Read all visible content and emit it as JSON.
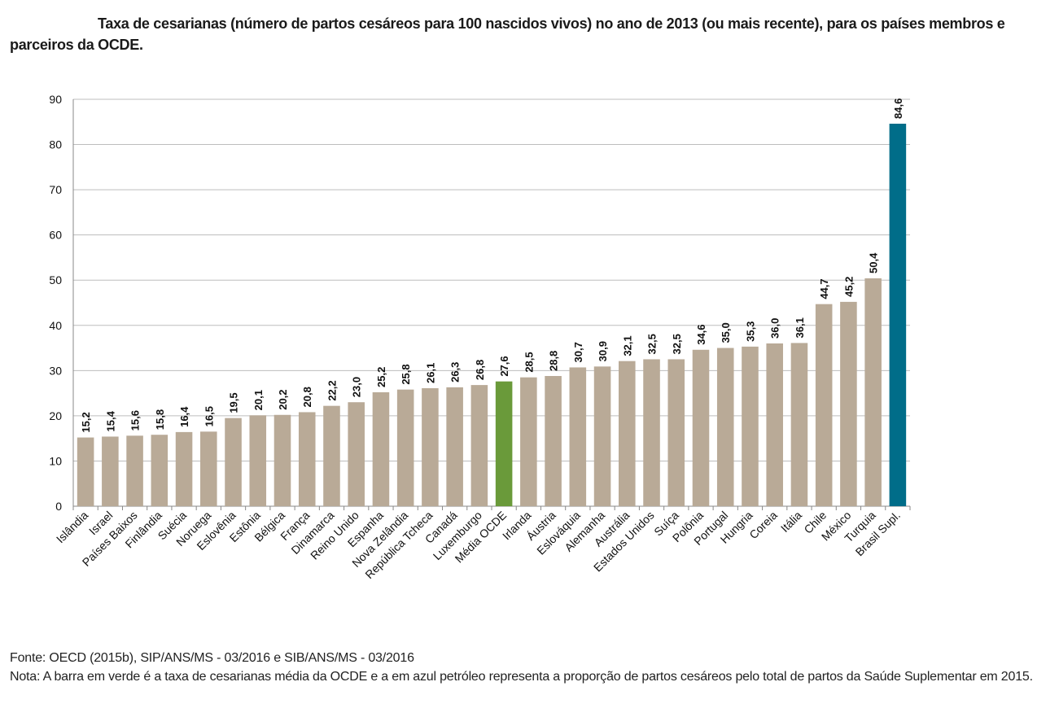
{
  "chart_data": {
    "type": "bar",
    "title": "Taxa de cesarianas (número de partos cesáreos para 100 nascidos vivos) no ano de 2013 (ou  mais recente), para os países membros e parceiros da OCDE.",
    "categories": [
      "Islândia",
      "Israel",
      "Países Baixos",
      "Finlândia",
      "Suécia",
      "Noruega",
      "Eslovênia",
      "Estônia",
      "Bélgica",
      "França",
      "Dinamarca",
      "Reino Unido",
      "Espanha",
      "Nova Zelândia",
      "República Tcheca",
      "Canadá",
      "Luxemburgo",
      "Média OCDE",
      "Irlanda",
      "Áustria",
      "Eslováquia",
      "Alemanha",
      "Austrália",
      "Estados Unidos",
      "Suíça",
      "Polônia",
      "Portugal",
      "Hungria",
      "Coreia",
      "Itália",
      "Chile",
      "México",
      "Turquia",
      "Brasil Supl."
    ],
    "values": [
      15.2,
      15.4,
      15.6,
      15.8,
      16.4,
      16.5,
      19.5,
      20.1,
      20.2,
      20.8,
      22.2,
      23.0,
      25.2,
      25.8,
      26.1,
      26.3,
      26.8,
      27.6,
      28.5,
      28.8,
      30.7,
      30.9,
      32.1,
      32.5,
      32.5,
      34.6,
      35.0,
      35.3,
      36.0,
      36.1,
      44.7,
      45.2,
      50.4,
      84.6
    ],
    "value_labels": [
      "15,2",
      "15,4",
      "15,6",
      "15,8",
      "16,4",
      "16,5",
      "19,5",
      "20,1",
      "20,2",
      "20,8",
      "22,2",
      "23,0",
      "25,2",
      "25,8",
      "26,1",
      "26,3",
      "26,8",
      "27,6",
      "28,5",
      "28,8",
      "30,7",
      "30,9",
      "32,1",
      "32,5",
      "32,5",
      "34,6",
      "35,0",
      "35,3",
      "36,0",
      "36,1",
      "44,7",
      "45,2",
      "50,4",
      "84,6"
    ],
    "colors": [
      "#b9aa97",
      "#b9aa97",
      "#b9aa97",
      "#b9aa97",
      "#b9aa97",
      "#b9aa97",
      "#b9aa97",
      "#b9aa97",
      "#b9aa97",
      "#b9aa97",
      "#b9aa97",
      "#b9aa97",
      "#b9aa97",
      "#b9aa97",
      "#b9aa97",
      "#b9aa97",
      "#b9aa97",
      "#6a9a3a",
      "#b9aa97",
      "#b9aa97",
      "#b9aa97",
      "#b9aa97",
      "#b9aa97",
      "#b9aa97",
      "#b9aa97",
      "#b9aa97",
      "#b9aa97",
      "#b9aa97",
      "#b9aa97",
      "#b9aa97",
      "#b9aa97",
      "#b9aa97",
      "#b9aa97",
      "#006d89"
    ],
    "ylim": [
      0,
      90
    ],
    "yticks": [
      0,
      10,
      20,
      30,
      40,
      50,
      60,
      70,
      80,
      90
    ],
    "grid": true,
    "source": "Fonte: OECD (2015b), SIP/ANS/MS - 03/2016 e SIB/ANS/MS - 03/2016",
    "note": "Nota: A barra em verde é a taxa de cesarianas média da OCDE e a em azul petróleo representa a proporção de partos cesáreos pelo total de partos da Saúde Suplementar em 2015."
  }
}
